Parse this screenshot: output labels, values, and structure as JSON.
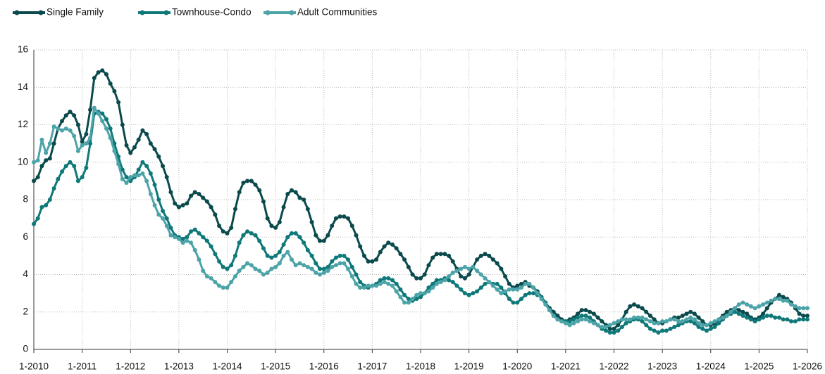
{
  "chart_data": {
    "type": "line",
    "categories": [
      "1-2010",
      null,
      null,
      null,
      null,
      null,
      null,
      null,
      null,
      null,
      null,
      null,
      "1-2011",
      null,
      null,
      null,
      null,
      null,
      null,
      null,
      null,
      null,
      null,
      null,
      "1-2012",
      null,
      null,
      null,
      null,
      null,
      null,
      null,
      null,
      null,
      null,
      null,
      "1-2013",
      null,
      null,
      null,
      null,
      null,
      null,
      null,
      null,
      null,
      null,
      null,
      "1-2014",
      null,
      null,
      null,
      null,
      null,
      null,
      null,
      null,
      null,
      null,
      null,
      "1-2015",
      null,
      null,
      null,
      null,
      null,
      null,
      null,
      null,
      null,
      null,
      null,
      "1-2016",
      null,
      null,
      null,
      null,
      null,
      null,
      null,
      null,
      null,
      null,
      null,
      "1-2017",
      null,
      null,
      null,
      null,
      null,
      null,
      null,
      null,
      null,
      null,
      null,
      "1-2018",
      null,
      null,
      null,
      null,
      null,
      null,
      null,
      null,
      null,
      null,
      null,
      "1-2019",
      null,
      null,
      null,
      null,
      null,
      null,
      null,
      null,
      null,
      null,
      null,
      "1-2020",
      null,
      null,
      null,
      null,
      null,
      null,
      null,
      null,
      null,
      null,
      null,
      "1-2021",
      null,
      null,
      null,
      null,
      null,
      null,
      null,
      null,
      null,
      null,
      null,
      "1-2022",
      null,
      null,
      null,
      null,
      null,
      null,
      null,
      null,
      null,
      null,
      null,
      "1-2023",
      null,
      null,
      null,
      null,
      null,
      null,
      null,
      null,
      null,
      null,
      null,
      "1-2024",
      null,
      null,
      null,
      null,
      null,
      null,
      null,
      null,
      null,
      null,
      null,
      "1-2025",
      null,
      null,
      null,
      null,
      null,
      null,
      null,
      null,
      null,
      null,
      null,
      "1-2026"
    ],
    "series": [
      {
        "name": "Single Family",
        "color": "#0b4a4c",
        "values": [
          9.0,
          9.2,
          9.8,
          10.1,
          10.2,
          11.0,
          11.8,
          12.2,
          12.5,
          12.7,
          12.5,
          12.0,
          11.1,
          11.5,
          12.8,
          14.5,
          14.8,
          14.9,
          14.7,
          14.2,
          13.8,
          13.2,
          12.0,
          10.9,
          10.5,
          10.8,
          11.2,
          11.7,
          11.5,
          11.0,
          10.7,
          10.3,
          9.8,
          9.2,
          8.4,
          7.8,
          7.6,
          7.7,
          7.8,
          8.2,
          8.4,
          8.3,
          8.1,
          7.9,
          7.6,
          7.2,
          6.6,
          6.3,
          6.2,
          6.5,
          7.5,
          8.4,
          8.9,
          9.0,
          9.0,
          8.8,
          8.5,
          7.9,
          7.0,
          6.6,
          6.5,
          6.8,
          7.6,
          8.3,
          8.5,
          8.4,
          8.1,
          8.0,
          7.5,
          6.8,
          6.1,
          5.8,
          5.8,
          6.1,
          6.6,
          7.0,
          7.1,
          7.1,
          7.0,
          6.6,
          6.1,
          5.5,
          5.0,
          4.7,
          4.7,
          4.8,
          5.2,
          5.5,
          5.7,
          5.6,
          5.4,
          5.1,
          4.8,
          4.4,
          4.0,
          3.8,
          3.8,
          4.0,
          4.5,
          4.9,
          5.1,
          5.1,
          5.1,
          5.0,
          4.7,
          4.3,
          3.9,
          3.8,
          4.0,
          4.4,
          4.8,
          5.0,
          5.1,
          5.0,
          4.8,
          4.6,
          4.3,
          3.9,
          3.5,
          3.3,
          3.4,
          3.5,
          3.6,
          3.4,
          3.3,
          3.1,
          2.8,
          2.5,
          2.2,
          2.0,
          1.8,
          1.6,
          1.5,
          1.6,
          1.7,
          1.9,
          2.1,
          2.1,
          2.0,
          1.9,
          1.7,
          1.5,
          1.3,
          1.1,
          1.1,
          1.3,
          1.6,
          2.0,
          2.3,
          2.4,
          2.3,
          2.2,
          2.0,
          1.8,
          1.6,
          1.4,
          1.4,
          1.5,
          1.6,
          1.7,
          1.7,
          1.8,
          1.9,
          2.0,
          1.9,
          1.7,
          1.5,
          1.3,
          1.3,
          1.4,
          1.6,
          1.8,
          2.0,
          2.1,
          2.2,
          2.1,
          2.0,
          1.9,
          1.7,
          1.6,
          1.7,
          1.9,
          2.2,
          2.5,
          2.7,
          2.9,
          2.8,
          2.7,
          2.5,
          2.2,
          1.9,
          1.8,
          1.8
        ]
      },
      {
        "name": "Townhouse-Condo",
        "color": "#0f7878",
        "values": [
          6.7,
          7.0,
          7.6,
          7.7,
          8.0,
          8.6,
          9.1,
          9.5,
          9.8,
          10.0,
          9.8,
          9.0,
          9.2,
          9.7,
          11.0,
          12.6,
          12.7,
          12.6,
          12.3,
          11.8,
          11.0,
          10.3,
          9.6,
          9.2,
          9.0,
          9.2,
          9.6,
          10.0,
          9.8,
          9.4,
          8.8,
          8.0,
          7.4,
          7.0,
          6.5,
          6.1,
          6.0,
          5.9,
          6.0,
          6.3,
          6.4,
          6.2,
          6.0,
          5.8,
          5.5,
          5.1,
          4.7,
          4.4,
          4.3,
          4.5,
          5.0,
          5.7,
          6.1,
          6.3,
          6.2,
          6.1,
          5.8,
          5.4,
          5.0,
          4.9,
          5.0,
          5.2,
          5.6,
          6.0,
          6.2,
          6.2,
          6.0,
          5.7,
          5.3,
          5.0,
          4.6,
          4.3,
          4.3,
          4.4,
          4.7,
          4.9,
          5.0,
          5.0,
          4.8,
          4.4,
          4.0,
          3.6,
          3.4,
          3.3,
          3.4,
          3.5,
          3.7,
          3.8,
          3.8,
          3.7,
          3.5,
          3.2,
          2.9,
          2.7,
          2.6,
          2.7,
          2.8,
          3.0,
          3.3,
          3.5,
          3.7,
          3.7,
          3.8,
          3.7,
          3.6,
          3.4,
          3.2,
          3.0,
          2.9,
          3.0,
          3.1,
          3.3,
          3.5,
          3.6,
          3.5,
          3.5,
          3.3,
          3.0,
          2.7,
          2.5,
          2.5,
          2.7,
          2.9,
          3.0,
          3.0,
          2.9,
          2.8,
          2.5,
          2.1,
          1.8,
          1.6,
          1.5,
          1.5,
          1.5,
          1.6,
          1.7,
          1.8,
          1.8,
          1.7,
          1.5,
          1.3,
          1.1,
          1.0,
          0.9,
          0.9,
          1.0,
          1.2,
          1.4,
          1.5,
          1.6,
          1.6,
          1.5,
          1.3,
          1.1,
          1.0,
          0.9,
          1.0,
          1.0,
          1.1,
          1.2,
          1.3,
          1.4,
          1.5,
          1.5,
          1.4,
          1.2,
          1.1,
          1.0,
          1.1,
          1.2,
          1.4,
          1.6,
          1.8,
          1.9,
          2.0,
          1.9,
          1.8,
          1.7,
          1.6,
          1.5,
          1.6,
          1.7,
          1.8,
          1.8,
          1.7,
          1.7,
          1.6,
          1.6,
          1.5,
          1.5,
          1.6,
          1.6,
          1.6
        ]
      },
      {
        "name": "Adult Communities",
        "color": "#4ca3a8",
        "values": [
          10.0,
          10.1,
          11.2,
          10.5,
          11.0,
          11.9,
          11.8,
          11.7,
          11.8,
          11.7,
          11.4,
          10.6,
          10.9,
          11.0,
          11.3,
          12.9,
          12.6,
          12.2,
          11.8,
          11.3,
          10.6,
          9.9,
          9.1,
          8.9,
          9.2,
          9.3,
          9.3,
          9.4,
          9.0,
          8.3,
          7.7,
          7.2,
          7.0,
          6.6,
          6.1,
          6.0,
          5.9,
          5.7,
          5.8,
          5.7,
          5.3,
          4.8,
          4.2,
          3.9,
          3.8,
          3.6,
          3.4,
          3.3,
          3.3,
          3.6,
          3.9,
          4.2,
          4.4,
          4.6,
          4.5,
          4.3,
          4.2,
          4.0,
          4.1,
          4.3,
          4.4,
          4.6,
          5.0,
          5.2,
          4.8,
          4.5,
          4.6,
          4.5,
          4.4,
          4.3,
          4.1,
          4.0,
          4.1,
          4.2,
          4.4,
          4.5,
          4.6,
          4.6,
          4.3,
          3.9,
          3.5,
          3.3,
          3.3,
          3.4,
          3.4,
          3.4,
          3.5,
          3.6,
          3.5,
          3.4,
          3.1,
          2.8,
          2.5,
          2.5,
          2.7,
          2.9,
          3.0,
          3.0,
          3.1,
          3.3,
          3.5,
          3.6,
          3.7,
          3.9,
          4.1,
          4.2,
          4.3,
          4.4,
          4.3,
          4.4,
          4.2,
          4.0,
          3.8,
          3.6,
          3.4,
          3.2,
          3.0,
          3.1,
          3.2,
          3.2,
          3.2,
          3.3,
          3.5,
          3.5,
          3.3,
          3.0,
          2.7,
          2.4,
          2.1,
          1.8,
          1.6,
          1.5,
          1.4,
          1.3,
          1.4,
          1.5,
          1.6,
          1.6,
          1.5,
          1.4,
          1.3,
          1.2,
          1.2,
          1.3,
          1.4,
          1.5,
          1.6,
          1.6,
          1.6,
          1.7,
          1.7,
          1.7,
          1.6,
          1.5,
          1.4,
          1.4,
          1.5,
          1.5,
          1.6,
          1.6,
          1.5,
          1.5,
          1.6,
          1.7,
          1.6,
          1.4,
          1.3,
          1.3,
          1.4,
          1.5,
          1.6,
          1.7,
          1.8,
          2.0,
          2.2,
          2.4,
          2.5,
          2.4,
          2.3,
          2.2,
          2.3,
          2.4,
          2.5,
          2.6,
          2.7,
          2.7,
          2.6,
          2.6,
          2.4,
          2.3,
          2.2,
          2.2,
          2.2
        ]
      }
    ],
    "ylim": [
      0,
      16
    ],
    "yticks": [
      0,
      2,
      4,
      6,
      8,
      10,
      12,
      14,
      16
    ],
    "grid": true,
    "legend": "top-left"
  }
}
